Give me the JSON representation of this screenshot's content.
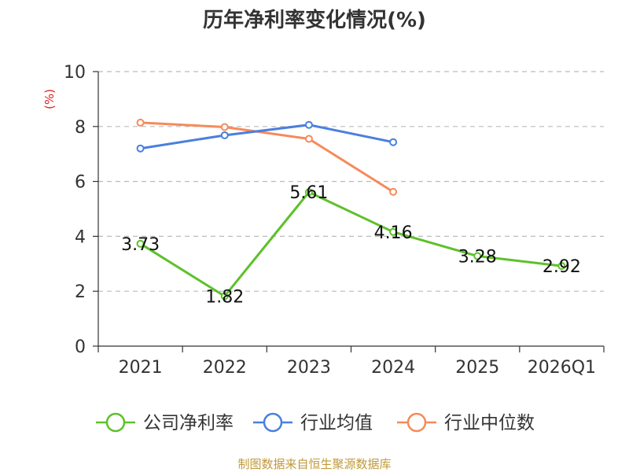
{
  "chart_data": {
    "type": "line",
    "title": "历年净利率变化情况(%)",
    "ylabel": "(%)",
    "xlabel": "",
    "categories": [
      "2021",
      "2022",
      "2023",
      "2024",
      "2025",
      "2026Q1"
    ],
    "ylim": [
      0,
      10
    ],
    "yticks": [
      0,
      2,
      4,
      6,
      8,
      10
    ],
    "grid": true,
    "legend_position": "bottom",
    "series": [
      {
        "name": "公司净利率",
        "color": "#5dc12a",
        "values": [
          3.73,
          1.82,
          5.61,
          4.16,
          3.28,
          2.92
        ],
        "data_labels": [
          "3.73",
          "1.82",
          "5.61",
          "4.16",
          "3.28",
          "2.92"
        ],
        "show_labels": true
      },
      {
        "name": "行业均值",
        "color": "#4a7fde",
        "values": [
          7.2,
          7.68,
          8.06,
          7.43,
          null,
          null
        ],
        "show_labels": false
      },
      {
        "name": "行业中位数",
        "color": "#f68a5a",
        "values": [
          8.14,
          7.98,
          7.55,
          5.62,
          null,
          null
        ],
        "show_labels": false
      }
    ],
    "source": "制图数据来自恒生聚源数据库"
  }
}
